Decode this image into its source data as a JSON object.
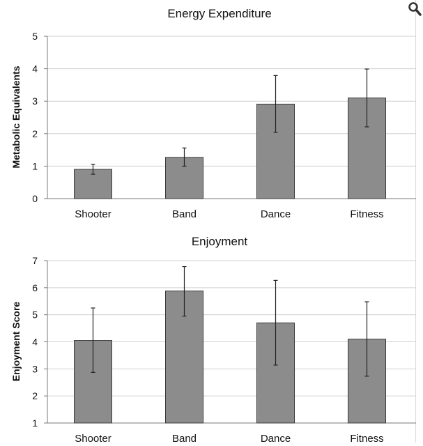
{
  "chart_data": [
    {
      "type": "bar",
      "title": "Energy Expenditure",
      "xlabel": "",
      "ylabel": "Metabolic Equivalents",
      "categories": [
        "Shooter",
        "Band",
        "Dance",
        "Fitness"
      ],
      "values": [
        0.9,
        1.27,
        2.91,
        3.1
      ],
      "error_low": [
        0.75,
        1.0,
        2.04,
        2.21
      ],
      "error_high": [
        1.06,
        1.56,
        3.79,
        3.99
      ],
      "ylim": [
        0,
        5
      ],
      "yticks": [
        "0",
        "1",
        "2",
        "3",
        "4",
        "5"
      ],
      "grid": true,
      "bar_color": "#8c8c8c"
    },
    {
      "type": "bar",
      "title": "Enjoyment",
      "xlabel": "",
      "ylabel": "Enjoyment Score",
      "categories": [
        "Shooter",
        "Band",
        "Dance",
        "Fitness"
      ],
      "values": [
        4.05,
        5.88,
        4.7,
        4.1
      ],
      "error_low": [
        2.87,
        4.95,
        3.14,
        2.73
      ],
      "error_high": [
        5.25,
        6.78,
        6.27,
        5.48
      ],
      "ylim": [
        1,
        7
      ],
      "yticks": [
        "1",
        "2",
        "3",
        "4",
        "5",
        "6",
        "7"
      ],
      "grid": true,
      "bar_color": "#8c8c8c"
    }
  ],
  "controls": {
    "zoom_icon": "magnifier-icon"
  }
}
